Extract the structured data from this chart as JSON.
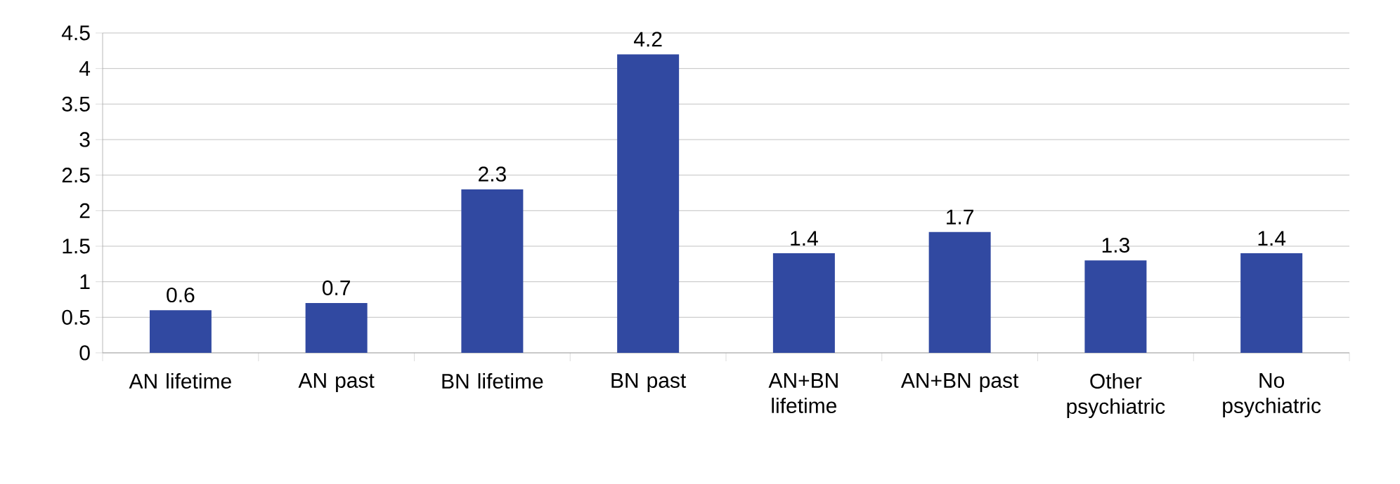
{
  "chart_data": {
    "type": "bar",
    "categories": [
      "AN lifetime",
      "AN past",
      "BN lifetime",
      "BN past",
      "AN+BN lifetime",
      "AN+BN past",
      "Other psychiatric",
      "No psychiatric"
    ],
    "values": [
      0.6,
      0.7,
      2.3,
      4.2,
      1.4,
      1.7,
      1.3,
      1.4
    ],
    "color": "#3149a1",
    "ylim": [
      0,
      4.5
    ],
    "yticks": [
      0,
      0.5,
      1,
      1.5,
      2,
      2.5,
      3,
      3.5,
      4,
      4.5
    ],
    "grid": "y",
    "data_labels": true
  }
}
